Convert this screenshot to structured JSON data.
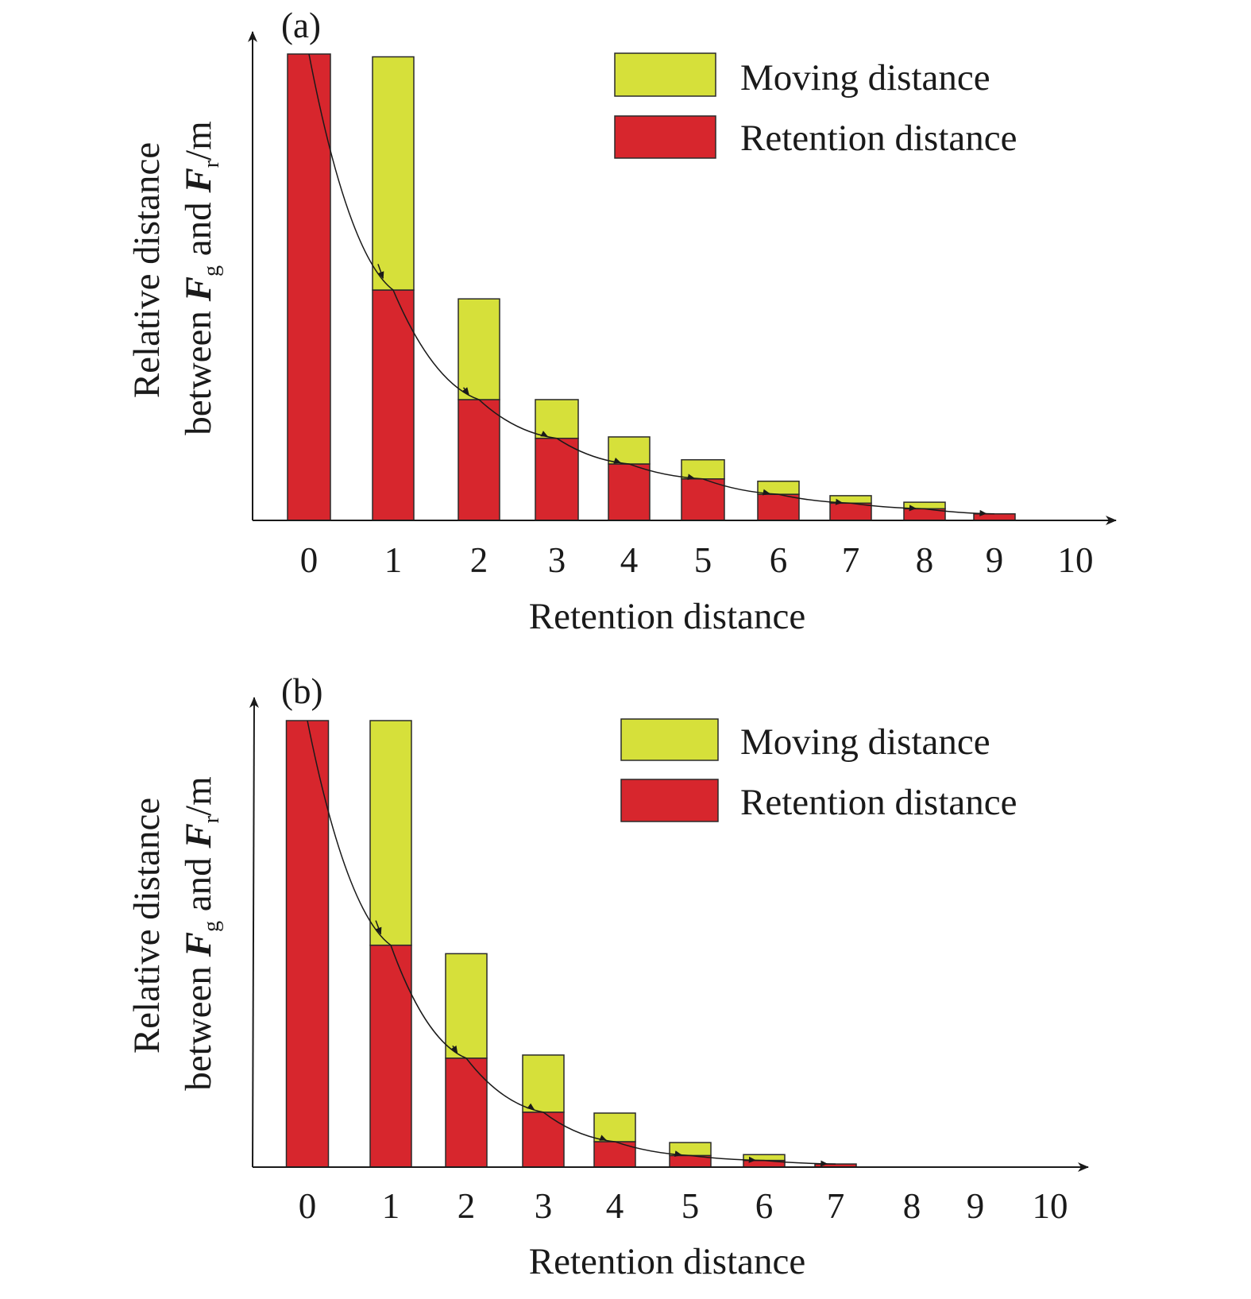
{
  "colors": {
    "moving": "#d6e03a",
    "retention": "#d7262d",
    "axis": "#1a1a1a"
  },
  "chart_data": [
    {
      "type": "bar",
      "panel_label": "(a)",
      "stacked": true,
      "categories": [
        "0",
        "1",
        "2",
        "3",
        "4",
        "5",
        "6",
        "7",
        "8",
        "9",
        "10"
      ],
      "series": [
        {
          "name": "Retention distance",
          "values": [
            100,
            49.4,
            25.9,
            17.6,
            12.1,
            8.9,
            5.6,
            3.7,
            2.5,
            1.4,
            0
          ]
        },
        {
          "name": "Moving distance",
          "values": [
            0,
            50.0,
            21.6,
            8.3,
            5.8,
            4.1,
            2.8,
            1.6,
            1.4,
            0,
            0
          ]
        }
      ],
      "xlabel": "Retention distance",
      "ylabel_line1": "Relative distance",
      "ylabel_line2": {
        "t1": "between ",
        "f1": "F",
        "s1": "g",
        "t2": " and ",
        "f2": "F",
        "s2": "r",
        "t3": "/m"
      },
      "ylim": [
        0,
        100
      ],
      "legend": {
        "position": "top-right",
        "entries": [
          "Moving distance",
          "Retention distance"
        ]
      },
      "grid": false
    },
    {
      "type": "bar",
      "panel_label": "(b)",
      "stacked": true,
      "categories": [
        "0",
        "1",
        "2",
        "3",
        "4",
        "5",
        "6",
        "7",
        "8",
        "9",
        "10"
      ],
      "series": [
        {
          "name": "Retention distance",
          "values": [
            100,
            49.7,
            24.4,
            12.3,
            5.7,
            2.6,
            1.5,
            0.7,
            0,
            0,
            0
          ]
        },
        {
          "name": "Moving distance",
          "values": [
            0,
            50.3,
            23.4,
            12.8,
            6.4,
            2.9,
            1.3,
            0,
            0,
            0,
            0
          ]
        }
      ],
      "xlabel": "Retention distance",
      "ylabel_line1": "Relative distance",
      "ylabel_line2": {
        "t1": "between ",
        "f1": "F",
        "s1": "g",
        "t2": " and ",
        "f2": "F",
        "s2": "r",
        "t3": "/m"
      },
      "ylim": [
        0,
        100
      ],
      "legend": {
        "position": "top-right",
        "entries": [
          "Moving distance",
          "Retention distance"
        ]
      },
      "grid": false
    }
  ]
}
